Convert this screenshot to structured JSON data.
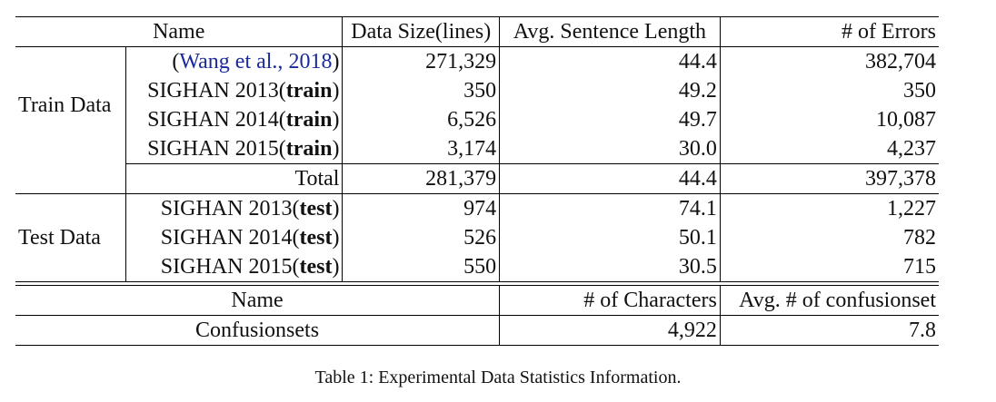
{
  "table1": {
    "header": {
      "name": "Name",
      "data_size": "Data Size(lines)",
      "avg_len": "Avg. Sentence Length",
      "errors": "# of Errors"
    },
    "train_group_label": "Train Data",
    "train_rows": [
      {
        "pre": "(",
        "cite": "Wang et al., ",
        "year": "2018",
        "post": ")",
        "size": "271,329",
        "avg": "44.4",
        "errors": "382,704"
      },
      {
        "name": "SIGHAN 2013(",
        "bold": "train",
        "post": ")",
        "size": "350",
        "avg": "49.2",
        "errors": "350"
      },
      {
        "name": "SIGHAN 2014(",
        "bold": "train",
        "post": ")",
        "size": "6,526",
        "avg": "49.7",
        "errors": "10,087"
      },
      {
        "name": "SIGHAN 2015(",
        "bold": "train",
        "post": ")",
        "size": "3,174",
        "avg": "30.0",
        "errors": "4,237"
      }
    ],
    "total": {
      "label": "Total",
      "size": "281,379",
      "avg": "44.4",
      "errors": "397,378"
    },
    "test_group_label": "Test Data",
    "test_rows": [
      {
        "name": "SIGHAN 2013(",
        "bold": "test",
        "post": ")",
        "size": "974",
        "avg": "74.1",
        "errors": "1,227"
      },
      {
        "name": "SIGHAN 2014(",
        "bold": "test",
        "post": ")",
        "size": "526",
        "avg": "50.1",
        "errors": "782"
      },
      {
        "name": "SIGHAN 2015(",
        "bold": "test",
        "post": ")",
        "size": "550",
        "avg": "30.5",
        "errors": "715"
      }
    ]
  },
  "table2": {
    "header": {
      "name": "Name",
      "chars": "# of Characters",
      "avg_conf": "Avg. # of confusionset"
    },
    "row": {
      "name": "Confusionsets",
      "chars": "4,922",
      "avg_conf": "7.8"
    }
  },
  "caption": "Table 1: Experimental Data Statistics Information."
}
